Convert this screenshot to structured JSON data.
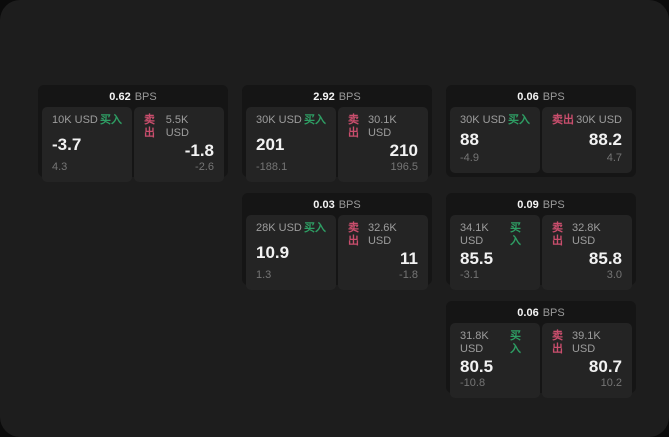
{
  "app": {
    "unit_label": "BPS",
    "buy_label": "买入",
    "sell_label": "卖出"
  },
  "colors": {
    "window_bg": "#1d1d1d",
    "card_bg": "#151515",
    "panel_bg": "#242424",
    "buy_green": "#2e9e64",
    "sell_red": "#ca4e6d",
    "value_white": "#f2f2f2",
    "label_gray": "#9d9d9d",
    "delta_gray": "#757575"
  },
  "cards": [
    {
      "bps": "0.62",
      "buy": {
        "amount": "10K USD",
        "value": "-3.7",
        "delta": "4.3"
      },
      "sell": {
        "amount": "5.5K USD",
        "value": "-1.8",
        "delta": "-2.6"
      }
    },
    {
      "bps": "2.92",
      "buy": {
        "amount": "30K USD",
        "value": "201",
        "delta": "-188.1"
      },
      "sell": {
        "amount": "30.1K USD",
        "value": "210",
        "delta": "196.5"
      }
    },
    {
      "bps": "0.06",
      "buy": {
        "amount": "30K USD",
        "value": "88",
        "delta": "-4.9"
      },
      "sell": {
        "amount": "30K USD",
        "value": "88.2",
        "delta": "4.7"
      }
    },
    {
      "bps": "0.03",
      "buy": {
        "amount": "28K USD",
        "value": "10.9",
        "delta": "1.3"
      },
      "sell": {
        "amount": "32.6K USD",
        "value": "11",
        "delta": "-1.8"
      }
    },
    {
      "bps": "0.09",
      "buy": {
        "amount": "34.1K USD",
        "value": "85.5",
        "delta": "-3.1"
      },
      "sell": {
        "amount": "32.8K USD",
        "value": "85.8",
        "delta": "3.0"
      }
    },
    {
      "bps": "0.06",
      "buy": {
        "amount": "31.8K USD",
        "value": "80.5",
        "delta": "-10.8"
      },
      "sell": {
        "amount": "39.1K USD",
        "value": "80.7",
        "delta": "10.2"
      }
    }
  ]
}
